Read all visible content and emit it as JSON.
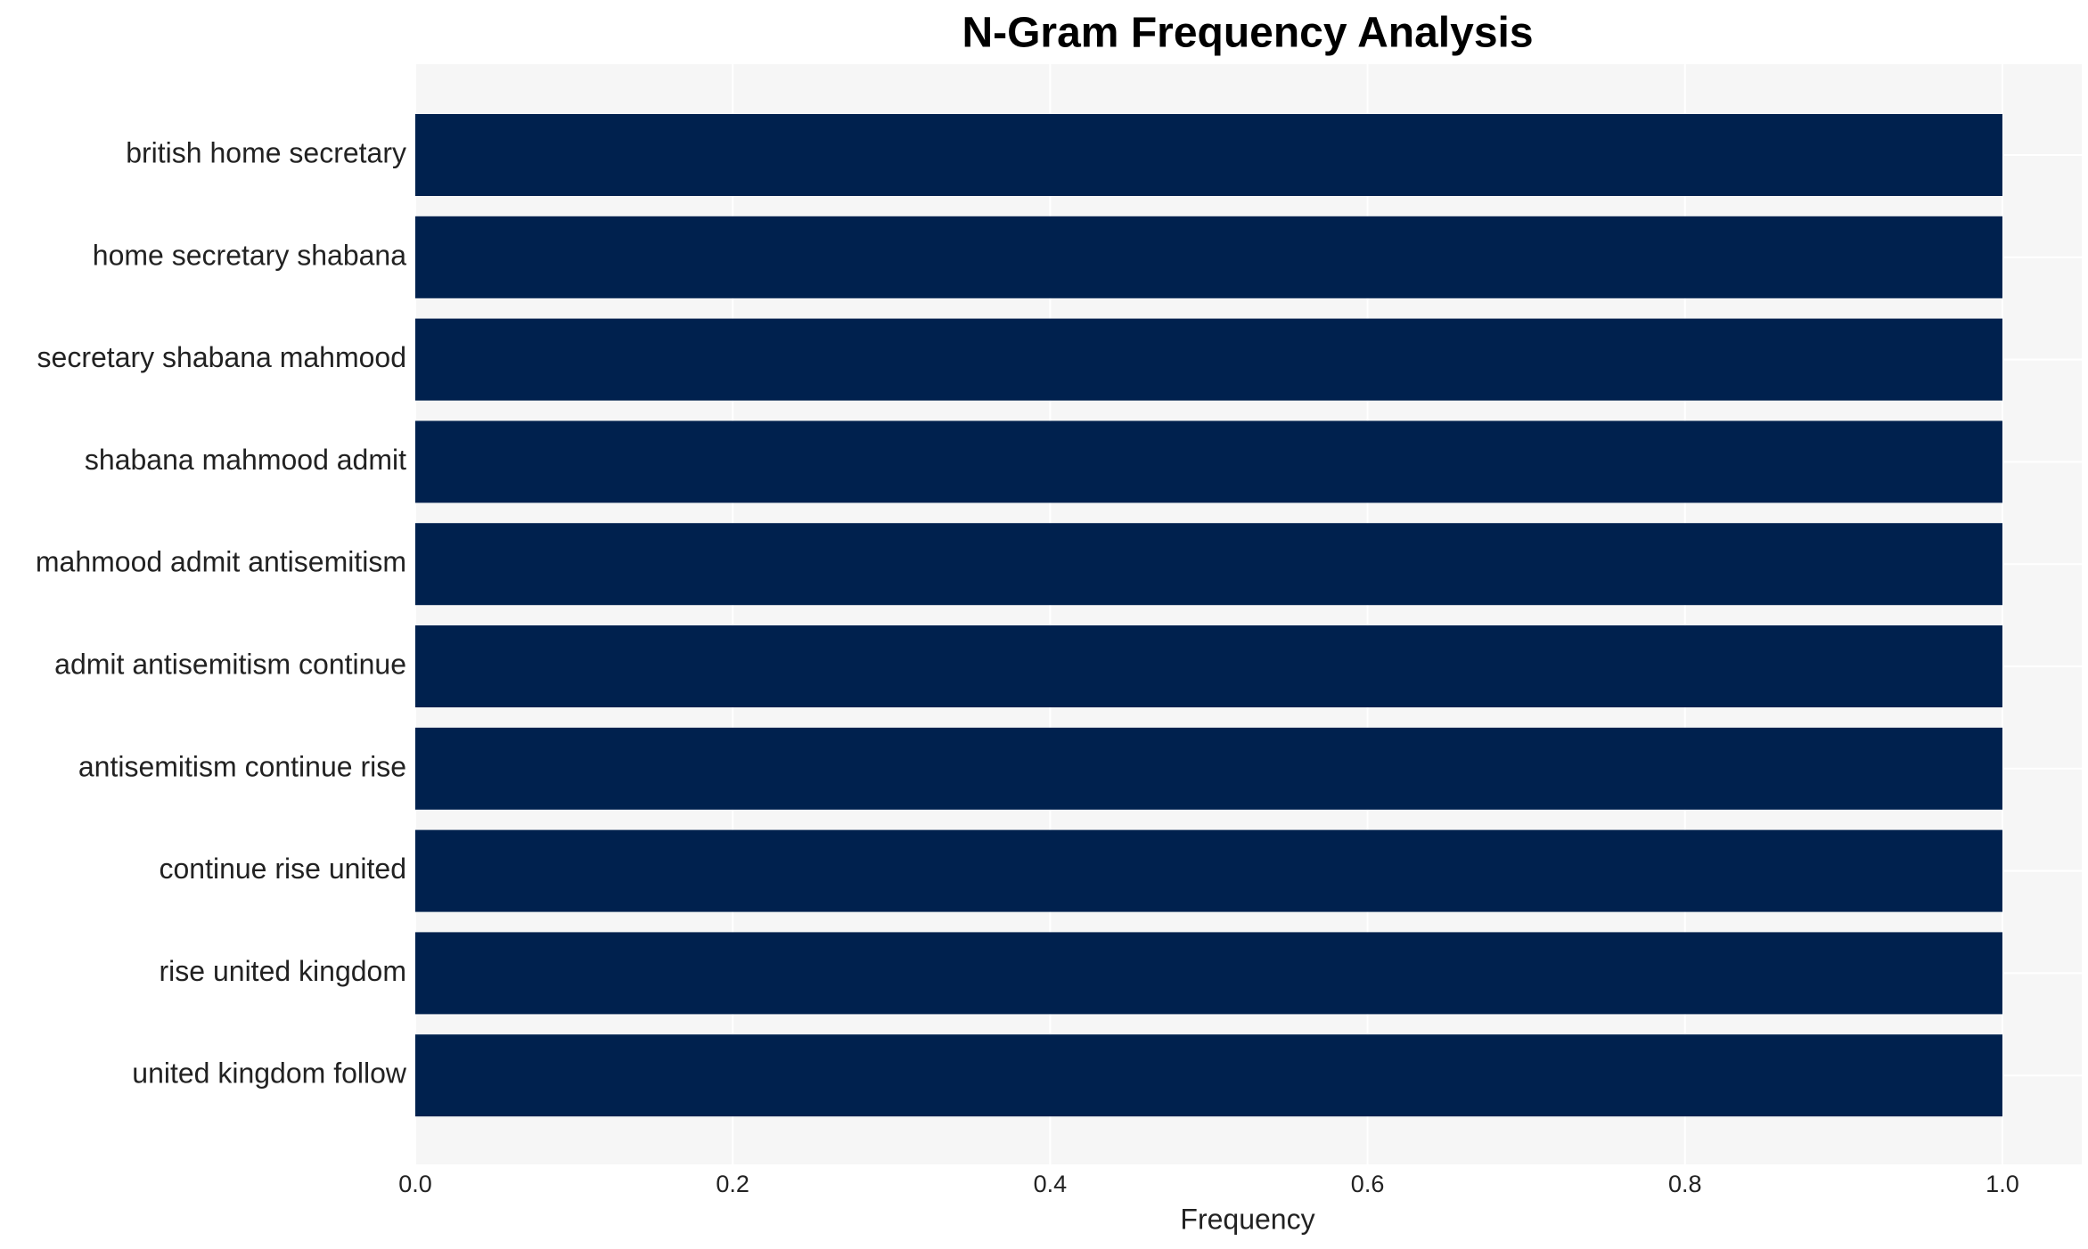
{
  "chart_data": {
    "type": "hbar",
    "title": "N-Gram Frequency Analysis",
    "x_label": "Frequency",
    "categories": [
      "british home secretary",
      "home secretary shabana",
      "secretary shabana mahmood",
      "shabana mahmood admit",
      "mahmood admit antisemitism",
      "admit antisemitism continue",
      "antisemitism continue rise",
      "continue rise united",
      "rise united kingdom",
      "united kingdom follow"
    ],
    "values": [
      1,
      1,
      1,
      1,
      1,
      1,
      1,
      1,
      1,
      1
    ],
    "color": "#00214e",
    "xlim": [
      0,
      1.05
    ],
    "xticks": [
      {
        "value": 0,
        "label": "0.0"
      },
      {
        "value": 0.2,
        "label": "0.2"
      },
      {
        "value": 0.4,
        "label": "0.4"
      },
      {
        "value": 0.6,
        "label": "0.6"
      },
      {
        "value": 0.8,
        "label": "0.8"
      },
      {
        "value": 1,
        "label": "1.0"
      }
    ],
    "grid": true
  }
}
